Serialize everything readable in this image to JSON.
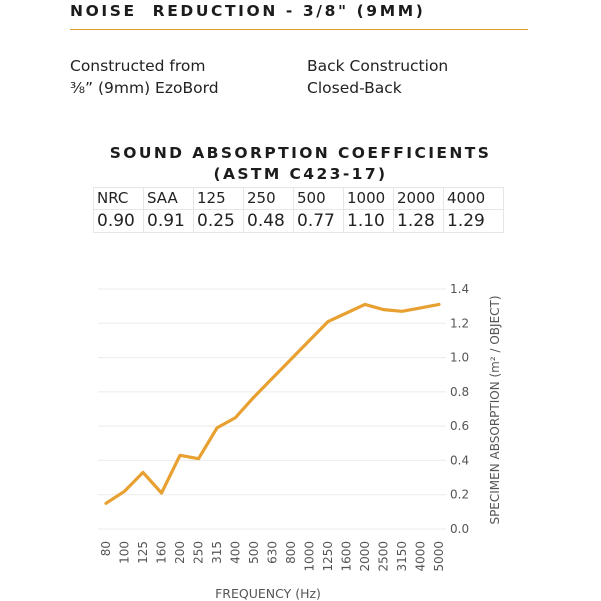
{
  "header": {
    "title": "NOISE  REDUCTION - 3/8\" (9MM)",
    "accent_color": "#e0a030"
  },
  "specs": {
    "left_line1": "Constructed from",
    "left_line2": "⅜” (9mm) EzoBord",
    "right_line1": "Back Construction",
    "right_line2": "Closed-Back"
  },
  "coefficients": {
    "title_line1": "SOUND ABSORPTION COEFFICIENTS",
    "title_line2": "(ASTM C423-17)",
    "headers": [
      "NRC",
      "SAA",
      "125",
      "250",
      "500",
      "1000",
      "2000",
      "4000"
    ],
    "values": [
      "0.90",
      "0.91",
      "0.25",
      "0.48",
      "0.77",
      "1.10",
      "1.28",
      "1.29"
    ]
  },
  "chart_data": {
    "type": "line",
    "xlabel": "FREQUENCY (Hz)",
    "ylabel": "SPECIMEN ABSORPTION (m² / OBJECT)",
    "categories": [
      "80",
      "100",
      "125",
      "160",
      "200",
      "250",
      "315",
      "400",
      "500",
      "630",
      "800",
      "1000",
      "1250",
      "1600",
      "2000",
      "2500",
      "3150",
      "4000",
      "5000"
    ],
    "values": [
      0.15,
      0.22,
      0.33,
      0.21,
      0.43,
      0.41,
      0.59,
      0.65,
      0.77,
      0.88,
      0.99,
      1.1,
      1.21,
      1.26,
      1.31,
      1.28,
      1.27,
      1.29,
      1.31
    ],
    "yticks": [
      "0.0",
      "0.2",
      "0.4",
      "0.6",
      "0.8",
      "1.0",
      "1.2",
      "1.4"
    ],
    "ylim": [
      0,
      1.4
    ],
    "grid": true,
    "line_color": "#e8a030",
    "grid_color": "#ebebeb"
  }
}
